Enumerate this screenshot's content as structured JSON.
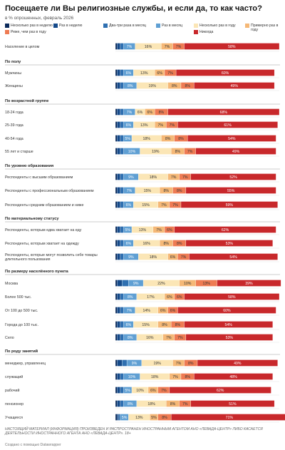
{
  "title": "Посещаете ли Вы религиозные службы, и если да, то как часто?",
  "subtitle": "в % опрошенных, февраль 2026",
  "footer_note": "НАСТОЯЩИЙ МАТЕРИАЛ (ИНФОРМАЦИЯ) ПРОИЗВЕДЕН И РАСПРОСТРАНЕН ИНОСТРАННЫМ АГЕНТОМ АНО «ЛЕВАДА-ЦЕНТР» ЛИБО КАСАЕТСЯ ДЕЯТЕЛЬНОСТИ ИНОСТРАННОГО АГЕНТА АНО «ЛЕВАДА-ЦЕНТР». 18+",
  "made_with": "Создано с помощью Datawrapper",
  "colors": {
    "grid": "#dddddd",
    "group_rule": "#999999",
    "label_dark": "#ffffff",
    "label_light": "#333333"
  },
  "chart_data": {
    "type": "bar",
    "orientation": "horizontal",
    "stacked": true,
    "xlim": [
      0,
      100
    ],
    "series": [
      {
        "name": "Несколько раз в неделю",
        "color": "#0b2a5b"
      },
      {
        "name": "Раз в неделю",
        "color": "#154a8a"
      },
      {
        "name": "Два-три раза в месяц",
        "color": "#2e6fb0"
      },
      {
        "name": "Раз в месяц",
        "color": "#5f9fd3"
      },
      {
        "name": "Несколько раз в году",
        "color": "#fbe6b6"
      },
      {
        "name": "Примерно раз в году",
        "color": "#f5b877"
      },
      {
        "name": "Реже, чем раз в году",
        "color": "#ee7b53"
      },
      {
        "name": "Никогда",
        "color": "#c8282b"
      }
    ],
    "groups": [
      {
        "title": "",
        "rows": [
          {
            "label": "Население в целом",
            "values": [
              1,
              2,
              2,
              7,
              16,
              7,
              7,
              58
            ]
          }
        ]
      },
      {
        "title": "По полу",
        "rows": [
          {
            "label": "Мужчины",
            "values": [
              1,
              2,
              2,
              6,
              13,
              6,
              7,
              60
            ]
          },
          {
            "label": "Женщины",
            "values": [
              1,
              2,
              2,
              8,
              19,
              8,
              8,
              49
            ]
          }
        ]
      },
      {
        "title": "По возрастной группе",
        "rows": [
          {
            "label": "18-24 года",
            "values": [
              1,
              2,
              2,
              7,
              6,
              6,
              8,
              68
            ]
          },
          {
            "label": "25-39 года",
            "values": [
              1,
              2,
              2,
              6,
              13,
              7,
              7,
              61
            ]
          },
          {
            "label": "40-54 года",
            "values": [
              1,
              2,
              2,
              5,
              18,
              8,
              8,
              54
            ]
          },
          {
            "label": "55 лет и старше",
            "values": [
              1,
              2,
              2,
              10,
              19,
              8,
              7,
              49
            ]
          }
        ]
      },
      {
        "title": "По уровню образования",
        "rows": [
          {
            "label": "Респонденты с высшим образованием",
            "values": [
              1,
              2,
              2,
              9,
              18,
              7,
              7,
              52
            ]
          },
          {
            "label": "Респонденты с профессиональным образованием",
            "values": [
              1,
              2,
              2,
              7,
              15,
              8,
              8,
              55
            ]
          },
          {
            "label": "Респонденты средним образованием и ниже",
            "values": [
              1,
              2,
              2,
              6,
              15,
              7,
              7,
              59
            ]
          }
        ]
      },
      {
        "title": "По материальному статусу",
        "rows": [
          {
            "label": "Респонденты, которым едва хватает на еду",
            "values": [
              1,
              2,
              2,
              5,
              13,
              7,
              6,
              62
            ]
          },
          {
            "label": "Респонденты, которым хватает на одежду",
            "values": [
              1,
              2,
              2,
              6,
              16,
              8,
              8,
              53
            ]
          },
          {
            "label": "Респонденты, которые могут позволить себе товары длительного пользования",
            "values": [
              1,
              2,
              2,
              9,
              18,
              6,
              7,
              54
            ]
          }
        ]
      },
      {
        "title": "По размеру населённого пункта",
        "rows": [
          {
            "label": "Москва",
            "values": [
              1,
              3,
              4,
              9,
              22,
              10,
              13,
              39
            ]
          },
          {
            "label": "Более 500 тыс.",
            "values": [
              1,
              2,
              2,
              8,
              17,
              6,
              6,
              58
            ]
          },
          {
            "label": "От 100 до 500 тыс.",
            "values": [
              1,
              2,
              2,
              7,
              14,
              6,
              6,
              60
            ]
          },
          {
            "label": "Города до 100 тыс.",
            "values": [
              1,
              2,
              2,
              6,
              15,
              8,
              8,
              54
            ]
          },
          {
            "label": "Село",
            "values": [
              1,
              2,
              2,
              8,
              16,
              7,
              7,
              53
            ]
          }
        ]
      },
      {
        "title": "По роду занятий",
        "rows": [
          {
            "label": "менеджер, управленец",
            "values": [
              1,
              3,
              3,
              9,
              19,
              7,
              8,
              49
            ]
          },
          {
            "label": "служащий",
            "values": [
              1,
              2,
              2,
              10,
              18,
              7,
              8,
              48
            ]
          },
          {
            "label": "рабочий",
            "values": [
              1,
              2,
              2,
              5,
              10,
              6,
              7,
              62
            ]
          },
          {
            "label": "пенсионер",
            "values": [
              1,
              2,
              2,
              8,
              18,
              8,
              7,
              51
            ]
          },
          {
            "label": "Учащиеся",
            "values": [
              1,
              1,
              1,
              5,
              13,
              5,
              8,
              71
            ]
          }
        ]
      }
    ]
  }
}
